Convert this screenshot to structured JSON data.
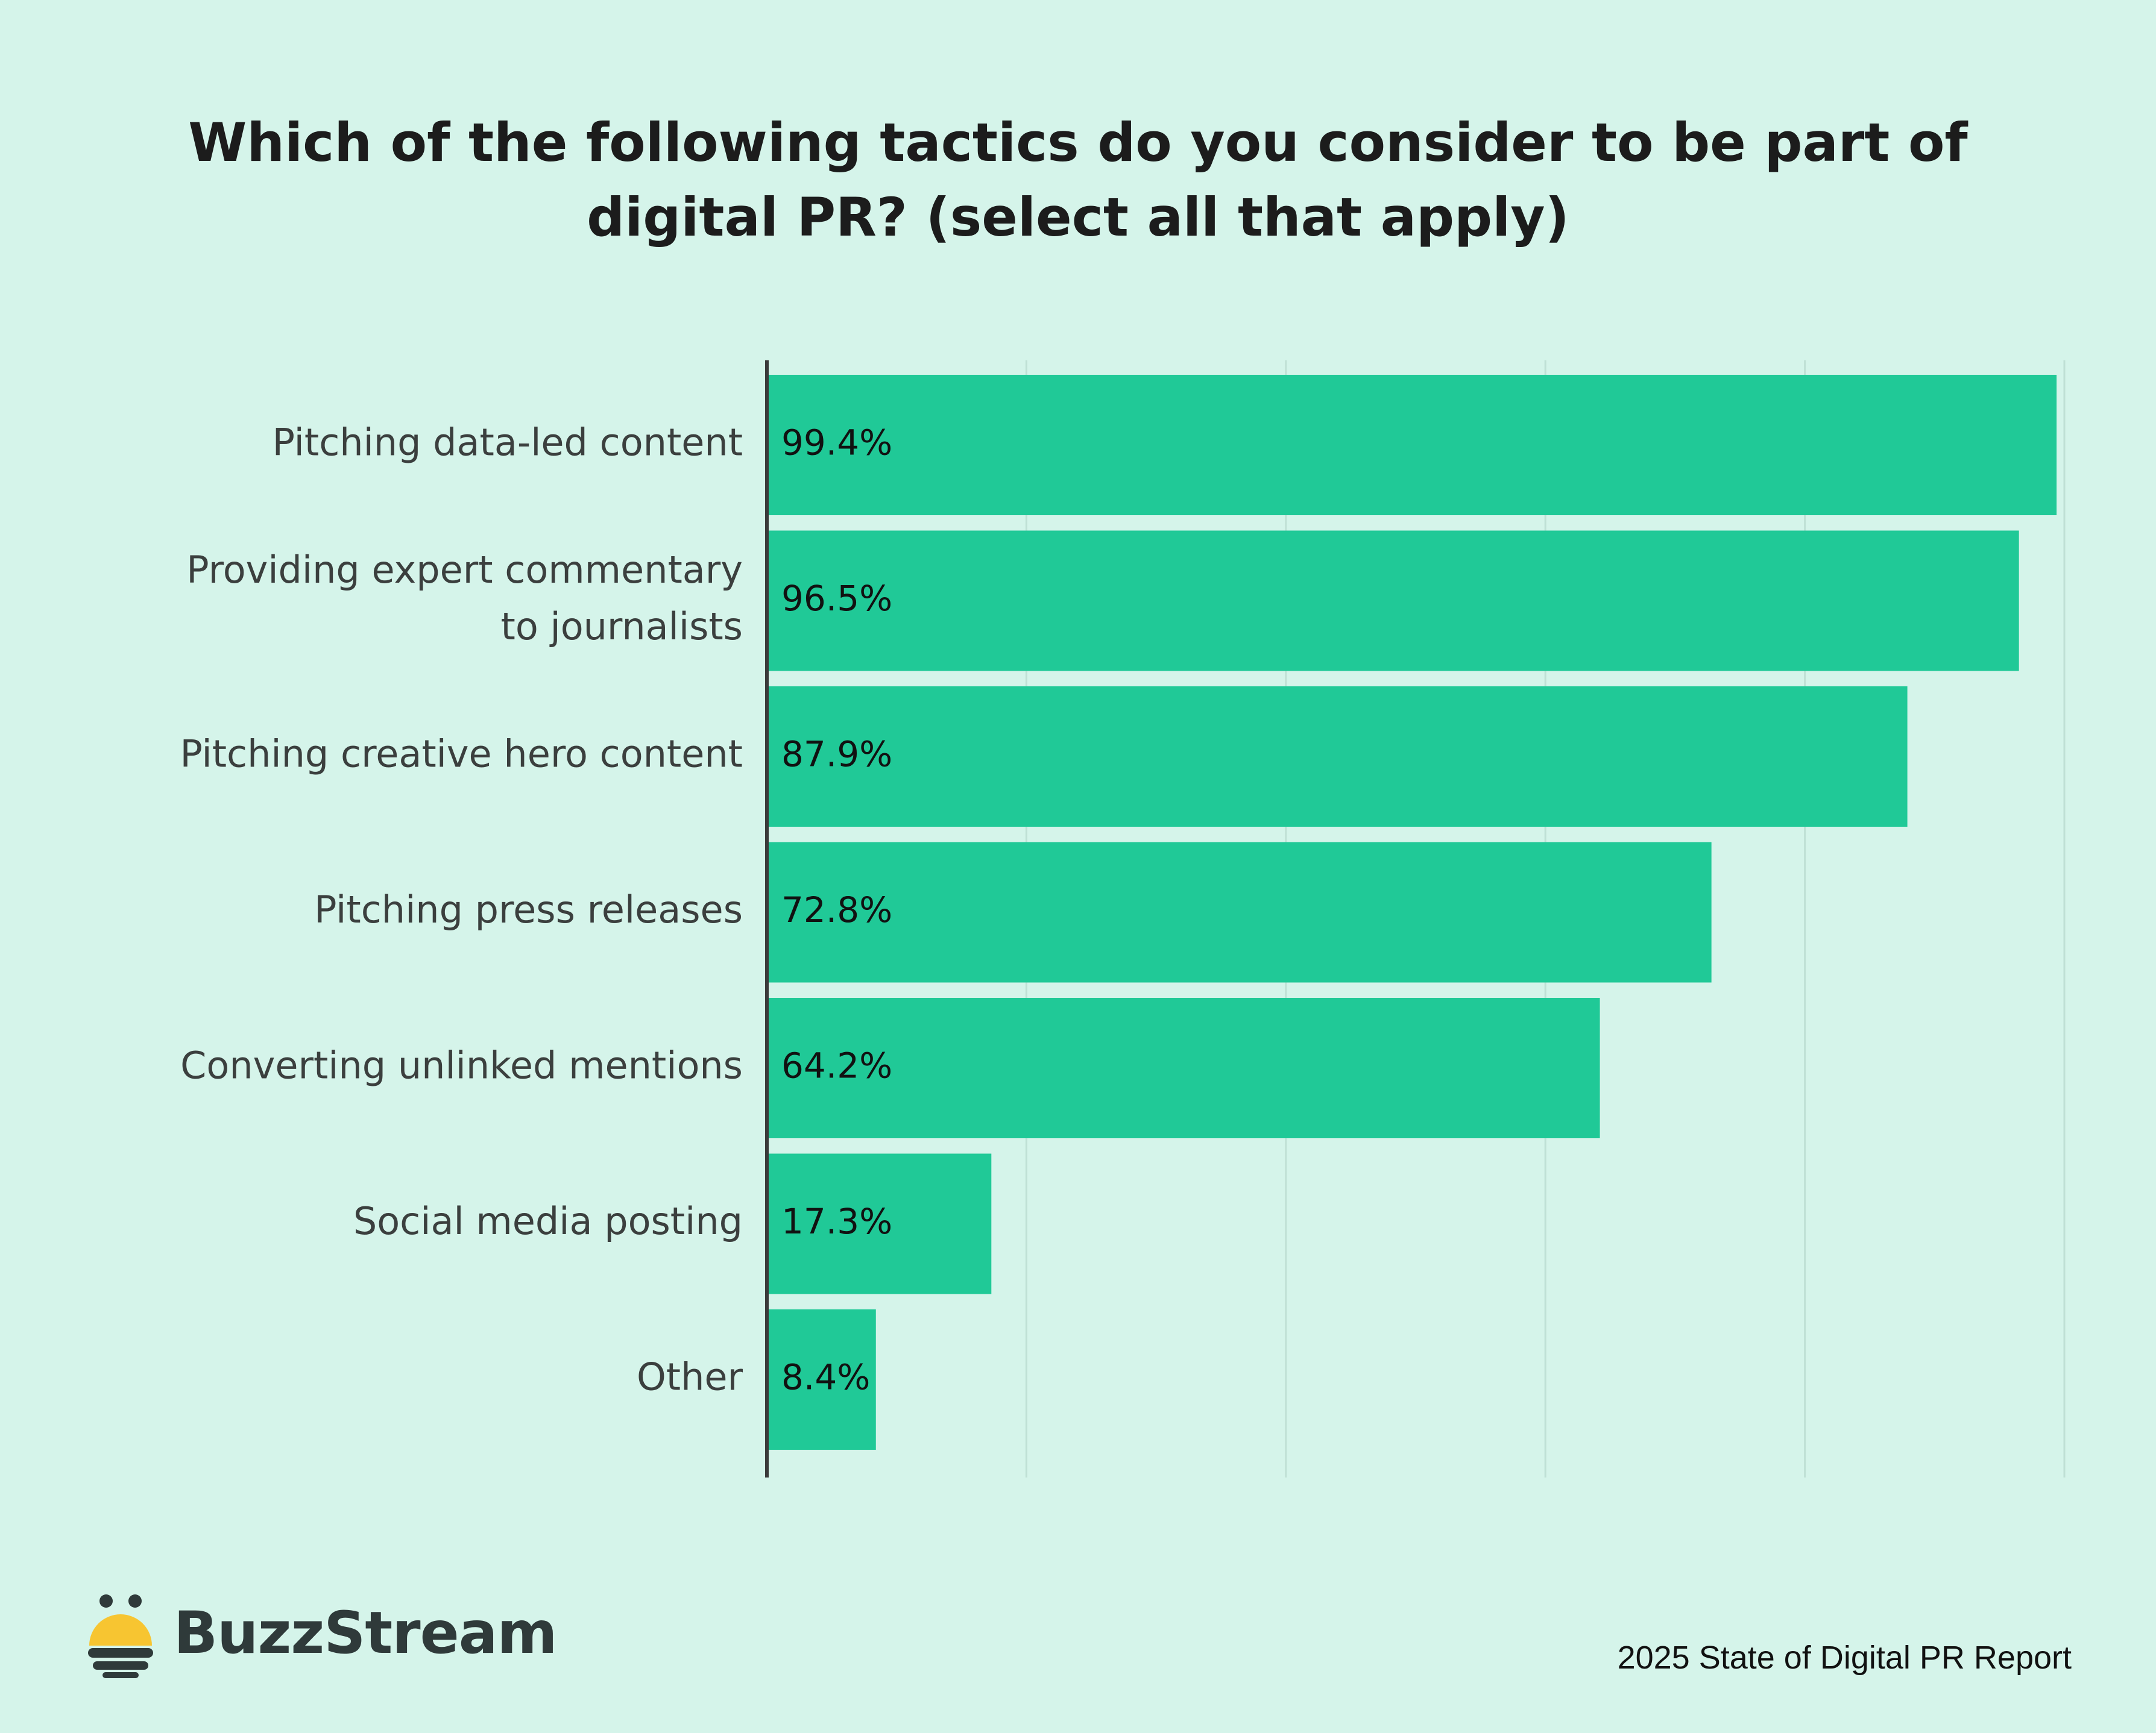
{
  "title": "Which of the following tactics do you consider to be part of digital PR? (select all that apply)",
  "footer": {
    "brand": "BuzzStream",
    "source": "2025 State of Digital PR Report"
  },
  "colors": {
    "background": "#d5f4ea",
    "bar": "#20c997",
    "axis": "#3a3a3a",
    "grid": "#bfe0d5"
  },
  "icons": {
    "logo": "buzzstream-bee-icon"
  },
  "chart_data": {
    "type": "bar",
    "orientation": "horizontal",
    "title": "Which of the following tactics do you consider to be part of digital PR? (select all that apply)",
    "categories": [
      [
        "Pitching data-led content"
      ],
      [
        "Providing expert commentary",
        "to journalists"
      ],
      [
        "Pitching creative hero content"
      ],
      [
        "Pitching press releases"
      ],
      [
        "Converting unlinked mentions"
      ],
      [
        "Social media posting"
      ],
      [
        "Other"
      ]
    ],
    "values": [
      99.4,
      96.5,
      87.9,
      72.8,
      64.2,
      17.3,
      8.4
    ],
    "value_labels": [
      "99.4%",
      "96.5%",
      "87.9%",
      "72.8%",
      "64.2%",
      "17.3%",
      "8.4%"
    ],
    "xlim": [
      0,
      100
    ],
    "grid": true,
    "legend": "none"
  }
}
